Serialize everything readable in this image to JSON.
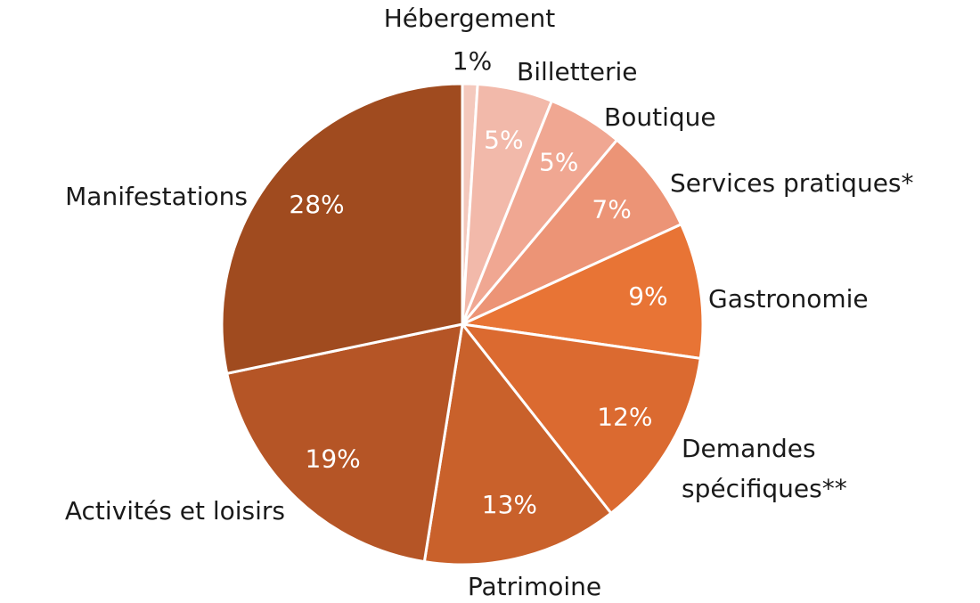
{
  "chart_data": {
    "type": "pie",
    "categories": [
      "Hébergement",
      "Billetterie",
      "Boutique",
      "Services pratiques*",
      "Gastronomie",
      "Demandes spécifiques**",
      "Patrimoine",
      "Activités et loisirs",
      "Manifestations"
    ],
    "values": [
      1,
      5,
      5,
      7,
      9,
      12,
      13,
      19,
      28
    ],
    "value_labels": [
      "1%",
      "5%",
      "5%",
      "7%",
      "9%",
      "12%",
      "13%",
      "19%",
      "28%"
    ],
    "colors": [
      "#f4c9bd",
      "#f2b9aa",
      "#f0a792",
      "#ec9476",
      "#e87435",
      "#db6a30",
      "#c9612b",
      "#b55526",
      "#a04b1f"
    ]
  }
}
